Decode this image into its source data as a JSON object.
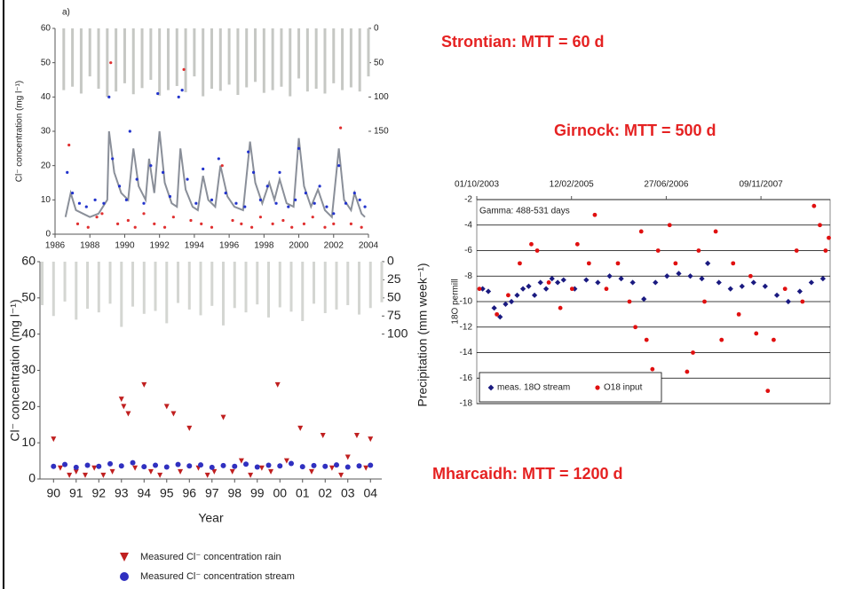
{
  "slide": {
    "labels": [
      "Strontian: MTT = 60 d",
      "Girnock: MTT = 500 d",
      "Mharcaidh: MTT = 1200 d"
    ]
  },
  "chart_data": [
    {
      "type": "scatter",
      "panel_label": "a)",
      "y_label": "Cl⁻ concentration (mg l⁻¹)",
      "xlim": [
        1986,
        2004
      ],
      "xticks": [
        1986,
        1988,
        1990,
        1992,
        1994,
        1996,
        1998,
        2000,
        2002,
        2004
      ],
      "ylim": [
        0,
        60
      ],
      "yticks": [
        0,
        10,
        20,
        30,
        40,
        50,
        60
      ],
      "y2lim": [
        300,
        0
      ],
      "y2ticks": [
        0,
        50,
        100,
        150
      ],
      "series": [
        {
          "type": "bar",
          "axis": "y2",
          "color": "#c6c8c4",
          "x": [
            1986.5,
            1987,
            1987.5,
            1988,
            1988.5,
            1989,
            1989.5,
            1990,
            1990.5,
            1991,
            1991.5,
            1992,
            1992.5,
            1993,
            1993.5,
            1994,
            1994.5,
            1995,
            1995.5,
            1996,
            1996.5,
            1997,
            1997.5,
            1998,
            1998.5,
            1999,
            1999.5,
            2000,
            2000.5,
            2001,
            2001.5,
            2002,
            2002.5,
            2003,
            2003.5,
            2004
          ],
          "values": [
            90,
            85,
            95,
            70,
            88,
            100,
            92,
            80,
            96,
            87,
            75,
            98,
            90,
            84,
            93,
            70,
            99,
            88,
            91,
            82,
            97,
            86,
            78,
            94,
            90,
            85,
            99,
            73,
            92,
            88,
            95,
            80,
            90,
            86,
            92,
            70
          ]
        },
        {
          "type": "line",
          "color": "#8a8f99",
          "x": [
            1986.6,
            1986.9,
            1987.2,
            1987.6,
            1988,
            1988.5,
            1989,
            1989.1,
            1989.4,
            1989.8,
            1990.2,
            1990.5,
            1990.8,
            1991.2,
            1991.4,
            1991.7,
            1992,
            1992.3,
            1992.7,
            1993,
            1993.2,
            1993.5,
            1993.9,
            1994.2,
            1994.5,
            1994.8,
            1995.2,
            1995.5,
            1995.9,
            1996.3,
            1996.8,
            1997.2,
            1997.5,
            1997.9,
            1998.3,
            1998.6,
            1998.9,
            1999.3,
            1999.7,
            2000,
            2000.3,
            2000.7,
            2001.1,
            2001.5,
            2001.9,
            2002.3,
            2002.6,
            2003,
            2003.2,
            2003.6,
            2003.8
          ],
          "values": [
            5,
            12,
            7,
            6,
            5,
            6,
            10,
            30,
            18,
            12,
            10,
            25,
            14,
            10,
            22,
            12,
            30,
            15,
            9,
            8,
            25,
            13,
            8,
            7,
            17,
            10,
            8,
            20,
            11,
            8,
            7,
            27,
            15,
            9,
            15,
            10,
            16,
            9,
            8,
            28,
            14,
            8,
            13,
            7,
            5,
            25,
            10,
            7,
            12,
            6,
            5
          ]
        },
        {
          "type": "scatter",
          "marker": "circle",
          "color": "#2233cc",
          "x": [
            1986.7,
            1987,
            1987.4,
            1987.8,
            1988.3,
            1988.8,
            1989.1,
            1989.3,
            1989.7,
            1990.1,
            1990.3,
            1990.7,
            1991.1,
            1991.5,
            1991.9,
            1992.2,
            1992.6,
            1993.1,
            1993.3,
            1993.6,
            1994.1,
            1994.5,
            1995,
            1995.4,
            1995.8,
            1996.4,
            1996.9,
            1997.1,
            1997.4,
            1997.8,
            1998.2,
            1998.7,
            1998.9,
            1999.4,
            1999.8,
            2000,
            2000.4,
            2000.9,
            2001.2,
            2001.6,
            2002,
            2002.3,
            2002.7,
            2003.2,
            2003.5,
            2003.8
          ],
          "values": [
            18,
            12,
            9,
            8,
            10,
            9,
            40,
            22,
            14,
            10,
            30,
            16,
            9,
            20,
            41,
            18,
            11,
            40,
            42,
            16,
            9,
            19,
            10,
            22,
            12,
            9,
            8,
            24,
            18,
            10,
            14,
            9,
            18,
            8,
            10,
            25,
            12,
            9,
            14,
            8,
            6,
            20,
            9,
            12,
            10,
            8
          ]
        },
        {
          "type": "scatter",
          "marker": "circle",
          "color": "#e03030",
          "x": [
            1986.8,
            1987.3,
            1987.9,
            1988.4,
            1988.7,
            1989.2,
            1989.6,
            1990.2,
            1990.6,
            1991.1,
            1991.7,
            1992.3,
            1992.8,
            1993.4,
            1993.8,
            1994.4,
            1995,
            1995.6,
            1996.2,
            1996.7,
            1997.3,
            1997.8,
            1998.5,
            1999.1,
            1999.6,
            2000.3,
            2000.8,
            2001.5,
            2002,
            2002.4,
            2003,
            2003.6
          ],
          "values": [
            26,
            3,
            2,
            5,
            6,
            50,
            3,
            4,
            2,
            6,
            3,
            2,
            5,
            48,
            4,
            3,
            2,
            20,
            4,
            3,
            2,
            5,
            3,
            4,
            2,
            3,
            5,
            2,
            3,
            31,
            3,
            2
          ]
        }
      ]
    },
    {
      "type": "scatter",
      "x_label": "Year",
      "y_label": "Cl⁻ concentration (mg l⁻¹)",
      "y2_label": "Precipitation (mm week⁻¹)",
      "xlim": [
        1989.4,
        2004.5
      ],
      "xticks": [
        {
          "value": 1990,
          "label": "90"
        },
        {
          "value": 1991,
          "label": "91"
        },
        {
          "value": 1992,
          "label": "92"
        },
        {
          "value": 1993,
          "label": "93"
        },
        {
          "value": 1994,
          "label": "94"
        },
        {
          "value": 1995,
          "label": "95"
        },
        {
          "value": 1996,
          "label": "96"
        },
        {
          "value": 1997,
          "label": "97"
        },
        {
          "value": 1998,
          "label": "98"
        },
        {
          "value": 1999,
          "label": "99"
        },
        {
          "value": 2000,
          "label": "00"
        },
        {
          "value": 2001,
          "label": "01"
        },
        {
          "value": 2002,
          "label": "02"
        },
        {
          "value": 2003,
          "label": "03"
        },
        {
          "value": 2004,
          "label": "04"
        }
      ],
      "ylim": [
        0,
        60
      ],
      "yticks": [
        0,
        10,
        20,
        30,
        40,
        50,
        60
      ],
      "y2lim": [
        300,
        0
      ],
      "y2ticks": [
        0,
        25,
        50,
        75,
        100
      ],
      "legend": "below",
      "series": [
        {
          "type": "bar",
          "axis": "y2",
          "color": "#d4d6d2",
          "x": [
            1989.5,
            1990,
            1990.5,
            1991,
            1991.5,
            1992,
            1992.5,
            1993,
            1993.5,
            1994,
            1994.5,
            1995,
            1995.5,
            1996,
            1996.5,
            1997,
            1997.5,
            1998,
            1998.5,
            1999,
            1999.5,
            2000,
            2000.5,
            2001,
            2001.5,
            2002,
            2002.5,
            2003,
            2003.5,
            2004,
            2004.5
          ],
          "values": [
            60,
            75,
            55,
            80,
            65,
            70,
            58,
            90,
            62,
            72,
            68,
            85,
            57,
            66,
            74,
            61,
            88,
            64,
            70,
            59,
            77,
            63,
            69,
            82,
            58,
            71,
            66,
            60,
            73,
            64,
            56
          ]
        },
        {
          "type": "scatter",
          "name": "Measured Cl⁻ concentration rain",
          "marker": "triangle",
          "color": "#c02020",
          "x": [
            1990,
            1990.3,
            1990.7,
            1991,
            1991.4,
            1991.8,
            1992.2,
            1992.6,
            1993,
            1993.1,
            1993.3,
            1993.6,
            1994,
            1994.3,
            1994.7,
            1995,
            1995.3,
            1995.6,
            1996,
            1996.4,
            1996.8,
            1997.1,
            1997.5,
            1997.9,
            1998.3,
            1998.7,
            1999.2,
            1999.6,
            1999.9,
            2000.3,
            2000.9,
            2001.4,
            2001.9,
            2002.3,
            2002.7,
            2003,
            2003.4,
            2003.8,
            2004
          ],
          "values": [
            11,
            3,
            1,
            2,
            1,
            3,
            1,
            2,
            22,
            20,
            18,
            3,
            26,
            2,
            1,
            20,
            18,
            2,
            14,
            3,
            1,
            2,
            17,
            2,
            5,
            1,
            3,
            2,
            26,
            5,
            14,
            2,
            12,
            3,
            1,
            6,
            12,
            3,
            11
          ]
        },
        {
          "type": "scatter",
          "name": "Measured Cl⁻ concentration stream",
          "marker": "circle",
          "color": "#3030c0",
          "x": [
            1990,
            1990.5,
            1991,
            1991.5,
            1992,
            1992.5,
            1993,
            1993.5,
            1994,
            1994.5,
            1995,
            1995.5,
            1996,
            1996.5,
            1997,
            1997.5,
            1998,
            1998.5,
            1999,
            1999.5,
            2000,
            2000.5,
            2001,
            2001.5,
            2002,
            2002.5,
            2003,
            2003.5,
            2004
          ],
          "values": [
            3.5,
            4,
            3.2,
            3.8,
            3.5,
            4.2,
            3.6,
            4.5,
            3.4,
            3.8,
            3.3,
            4,
            3.6,
            3.9,
            3.2,
            3.7,
            3.5,
            4.1,
            3.3,
            3.8,
            3.6,
            4.3,
            3.4,
            3.7,
            3.5,
            3.9,
            3.3,
            3.6,
            3.8
          ]
        }
      ]
    },
    {
      "type": "scatter",
      "y_label": "18O permill",
      "annotation": "Gamma: 488-531 days",
      "xaxis_position": "top",
      "grid": true,
      "legend": "lower left",
      "xlim": [
        "01/10/2003",
        "08/11/2008"
      ],
      "xticks": [
        "01/10/2003",
        "12/02/2005",
        "27/06/2006",
        "09/11/2007"
      ],
      "ylim": [
        -18,
        -2
      ],
      "yticks": [
        -18,
        -16,
        -14,
        -12,
        -10,
        -8,
        -6,
        -4,
        -2
      ],
      "series": [
        {
          "type": "scatter",
          "name": "meas. 18O stream",
          "marker": "diamond",
          "color": "#1a1a80",
          "x": [
            "01/11/2003",
            "01/12/2003",
            "01/01/2004",
            "01/02/2004",
            "01/03/2004",
            "01/04/2004",
            "01/05/2004",
            "01/06/2004",
            "01/07/2004",
            "01/08/2004",
            "01/09/2004",
            "01/10/2004",
            "01/11/2004",
            "01/12/2004",
            "01/01/2005",
            "01/03/2005",
            "01/05/2005",
            "01/07/2005",
            "01/09/2005",
            "01/11/2005",
            "01/01/2006",
            "01/03/2006",
            "01/05/2006",
            "01/07/2006",
            "01/09/2006",
            "01/11/2006",
            "01/01/2007",
            "01/02/2007",
            "01/04/2007",
            "01/06/2007",
            "01/08/2007",
            "01/10/2007",
            "01/12/2007",
            "01/02/2008",
            "01/04/2008",
            "01/06/2008",
            "01/08/2008",
            "01/10/2008"
          ],
          "values": [
            -9,
            -9.2,
            -10.5,
            -11.2,
            -10.2,
            -10,
            -9.5,
            -9,
            -8.8,
            -9.5,
            -8.5,
            -9,
            -8.2,
            -8.5,
            -8.3,
            -9,
            -8.3,
            -8.5,
            -8,
            -8.2,
            -8.5,
            -9.8,
            -8.5,
            -8,
            -7.8,
            -8,
            -8.2,
            -7,
            -8.5,
            -9,
            -8.8,
            -8.5,
            -8.8,
            -9.5,
            -10,
            -9.2,
            -8.5,
            -8.2
          ]
        },
        {
          "type": "scatter",
          "name": "O18 input",
          "marker": "circle",
          "color": "#e01010",
          "x": [
            "15/10/2003",
            "15/11/2003",
            "15/01/2004",
            "15/03/2004",
            "15/05/2004",
            "15/07/2004",
            "15/08/2004",
            "15/10/2004",
            "15/12/2004",
            "15/02/2005",
            "15/03/2005",
            "15/05/2005",
            "15/06/2005",
            "15/08/2005",
            "15/10/2005",
            "15/12/2005",
            "15/01/2006",
            "15/02/2006",
            "15/03/2006",
            "15/04/2006",
            "15/05/2006",
            "15/07/2006",
            "15/08/2006",
            "15/10/2006",
            "15/11/2006",
            "15/12/2006",
            "15/01/2007",
            "15/03/2007",
            "15/04/2007",
            "15/06/2007",
            "15/07/2007",
            "15/09/2007",
            "15/10/2007",
            "15/12/2007",
            "15/01/2008",
            "15/03/2008",
            "15/05/2008",
            "15/06/2008",
            "15/08/2008",
            "15/09/2008",
            "15/10/2008",
            "01/11/2008"
          ],
          "values": [
            -9,
            -15.8,
            -11,
            -9.5,
            -7,
            -5.5,
            -6,
            -8.5,
            -10.5,
            -9,
            -5.5,
            -7,
            -3.2,
            -9,
            -7,
            -10,
            -12,
            -4.5,
            -13,
            -15.3,
            -6,
            -4,
            -7,
            -15.5,
            -14,
            -6,
            -10,
            -4.5,
            -13,
            -7,
            -11,
            -8,
            -12.5,
            -17,
            -13,
            -9,
            -6,
            -10,
            -2.5,
            -4,
            -6,
            -5
          ]
        }
      ]
    }
  ]
}
